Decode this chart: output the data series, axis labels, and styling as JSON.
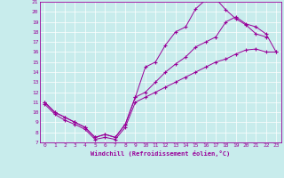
{
  "xlabel": "Windchill (Refroidissement éolien,°C)",
  "bg_color": "#c8ecec",
  "line_color": "#990099",
  "grid_color": "#ffffff",
  "xlim": [
    -0.5,
    23.5
  ],
  "ylim": [
    7,
    21
  ],
  "xticks": [
    0,
    1,
    2,
    3,
    4,
    5,
    6,
    7,
    8,
    9,
    10,
    11,
    12,
    13,
    14,
    15,
    16,
    17,
    18,
    19,
    20,
    21,
    22,
    23
  ],
  "yticks": [
    7,
    8,
    9,
    10,
    11,
    12,
    13,
    14,
    15,
    16,
    17,
    18,
    19,
    20,
    21
  ],
  "line_zigzag_x": [
    0,
    1,
    2,
    3,
    4,
    5,
    6,
    7,
    8,
    9,
    10,
    11,
    12,
    13,
    14,
    15,
    16,
    17,
    18,
    19,
    20,
    21,
    22
  ],
  "line_zigzag_y": [
    11,
    10,
    9.5,
    9,
    8.5,
    7.5,
    7.8,
    7.5,
    8.8,
    11.5,
    14.5,
    15,
    16.7,
    18,
    18.5,
    20.3,
    21.2,
    21.3,
    20.2,
    19.3,
    18.7,
    17.8,
    17.5
  ],
  "line_upper_x": [
    0,
    1,
    2,
    3,
    4,
    5,
    6,
    7,
    8,
    9,
    10,
    11,
    12,
    13,
    14,
    15,
    16,
    17,
    18,
    19,
    20,
    21,
    22,
    23
  ],
  "line_upper_y": [
    11,
    10,
    9.5,
    9,
    8.5,
    7.5,
    7.8,
    7.5,
    8.8,
    11.5,
    12,
    13,
    14,
    14.8,
    15.5,
    16.5,
    17,
    17.5,
    19,
    19.5,
    18.8,
    18.5,
    17.8,
    16.0
  ],
  "line_lower_x": [
    0,
    1,
    2,
    3,
    4,
    5,
    6,
    7,
    8,
    9,
    10,
    11,
    12,
    13,
    14,
    15,
    16,
    17,
    18,
    19,
    20,
    21,
    22,
    23
  ],
  "line_lower_y": [
    10.8,
    9.8,
    9.2,
    8.8,
    8.3,
    7.3,
    7.5,
    7.3,
    8.5,
    11,
    11.5,
    12,
    12.5,
    13,
    13.5,
    14,
    14.5,
    15,
    15.3,
    15.8,
    16.2,
    16.3,
    16.0,
    16.0
  ]
}
